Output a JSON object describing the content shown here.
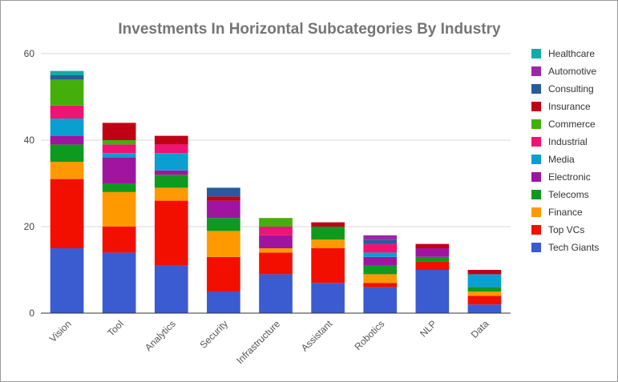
{
  "chart_data": {
    "type": "bar",
    "stacked": true,
    "title": "Investments In Horizontal Subcategories By Industry",
    "xlabel": "",
    "ylabel": "",
    "ylim": [
      0,
      60
    ],
    "yticks": [
      0,
      20,
      40,
      60
    ],
    "grid": true,
    "legend_position": "right",
    "categories": [
      "Vision",
      "Tool",
      "Analytics",
      "Security",
      "Infrastructure",
      "Assistant",
      "Robotics",
      "NLP",
      "Data"
    ],
    "series": [
      {
        "name": "Tech Giants",
        "color": "#3b5bd1",
        "values": [
          15,
          14,
          11,
          5,
          9,
          7,
          6,
          10,
          2
        ]
      },
      {
        "name": "Top VCs",
        "color": "#f20f00",
        "values": [
          16,
          6,
          15,
          8,
          5,
          8,
          1,
          2,
          2
        ]
      },
      {
        "name": "Finance",
        "color": "#ff9900",
        "values": [
          4,
          8,
          3,
          6,
          1,
          2,
          2,
          0,
          1
        ]
      },
      {
        "name": "Telecoms",
        "color": "#0e9a1e",
        "values": [
          4,
          2,
          3,
          3,
          0,
          3,
          2,
          1,
          1
        ]
      },
      {
        "name": "Electronic",
        "color": "#a0159f",
        "values": [
          2,
          6,
          1,
          4,
          3,
          0,
          2,
          2,
          0
        ]
      },
      {
        "name": "Media",
        "color": "#0a9fd1",
        "values": [
          4,
          1,
          4,
          0,
          0,
          0,
          1,
          0,
          3
        ]
      },
      {
        "name": "Industrial",
        "color": "#ef1373",
        "values": [
          3,
          2,
          2,
          0,
          2,
          0,
          2,
          0,
          0
        ]
      },
      {
        "name": "Commerce",
        "color": "#44af0b",
        "values": [
          6,
          1,
          0,
          0,
          2,
          0,
          0,
          0,
          0
        ]
      },
      {
        "name": "Insurance",
        "color": "#c00015",
        "values": [
          0,
          4,
          2,
          1,
          0,
          1,
          0,
          1,
          1
        ]
      },
      {
        "name": "Consulting",
        "color": "#285b9d",
        "values": [
          1,
          0,
          0,
          2,
          0,
          0,
          1,
          0,
          0
        ]
      },
      {
        "name": "Automotive",
        "color": "#9b28a8",
        "values": [
          0,
          0,
          0,
          0,
          0,
          0,
          1,
          0,
          0
        ]
      },
      {
        "name": "Healthcare",
        "color": "#13aba7",
        "values": [
          1,
          0,
          0,
          0,
          0,
          0,
          0,
          0,
          0
        ]
      }
    ]
  }
}
